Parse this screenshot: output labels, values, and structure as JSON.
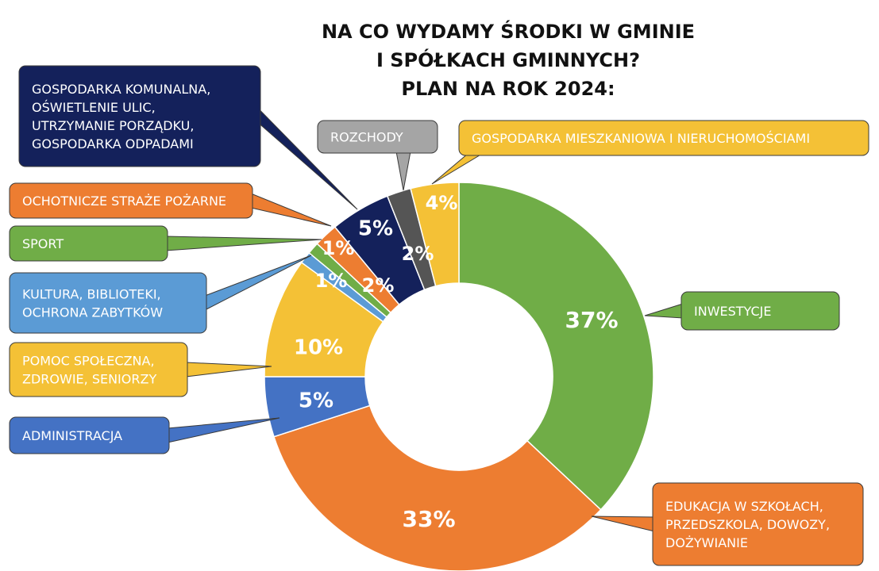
{
  "title_lines": [
    "NA CO WYDAMY ŚRODKI W GMINIE",
    "I SPÓŁKACH GMINNYCH?",
    "PLAN NA ROK 2024:"
  ],
  "chart_data": {
    "type": "pie",
    "variant": "doughnut",
    "title": "NA CO WYDAMY ŚRODKI W GMINIE I SPÓŁKACH GMINNYCH? PLAN NA ROK 2024:",
    "unit": "%",
    "start": "top, clockwise",
    "legend": "callout labels",
    "slices": [
      {
        "key": "inwestycje",
        "label_lines": [
          "INWESTYCJE"
        ],
        "value": 37,
        "value_label": "37%",
        "color": "#70AD47",
        "label_color": "#70AD47"
      },
      {
        "key": "edukacja",
        "label_lines": [
          "EDUKACJA W SZKOŁACH,",
          "PRZEDSZKOLA, DOWOZY,",
          "DOŻYWIANIE"
        ],
        "value": 33,
        "value_label": "33%",
        "color": "#ED7D31",
        "label_color": "#ED7D31"
      },
      {
        "key": "administracja",
        "label_lines": [
          "ADMINISTRACJA"
        ],
        "value": 5,
        "value_label": "5%",
        "color": "#4472C4",
        "label_color": "#4472C4"
      },
      {
        "key": "pomoc",
        "label_lines": [
          "POMOC SPOŁECZNA,",
          "ZDROWIE, SENIORZY"
        ],
        "value": 10,
        "value_label": "10%",
        "color": "#F4C136",
        "label_color": "#F4C136"
      },
      {
        "key": "kultura",
        "label_lines": [
          "KULTURA, BIBLIOTEKI,",
          "OCHRONA ZABYTKÓW"
        ],
        "value": 1,
        "value_label": "1%",
        "color": "#5B9BD5",
        "label_color": "#5B9BD5"
      },
      {
        "key": "sport",
        "label_lines": [
          "SPORT"
        ],
        "value": 1,
        "value_label": "1%",
        "color": "#70AD47",
        "label_color": "#70AD47"
      },
      {
        "key": "osp",
        "label_lines": [
          "OCHOTNICZE STRAŻE POŻARNE"
        ],
        "value": 2,
        "value_label": "2%",
        "color": "#ED7D31",
        "label_color": "#ED7D31"
      },
      {
        "key": "komunalna",
        "label_lines": [
          "GOSPODARKA KOMUNALNA,",
          "OŚWIETLENIE ULIC,",
          "UTRZYMANIE PORZĄDKU,",
          "GOSPODARKA ODPADAMI"
        ],
        "value": 5,
        "value_label": "5%",
        "color": "#14215B",
        "label_color": "#14215B"
      },
      {
        "key": "rozchody",
        "label_lines": [
          "ROZCHODY"
        ],
        "value": 2,
        "value_label": "2%",
        "color": "#555555",
        "label_color": "#A5A5A5"
      },
      {
        "key": "mieszkaniowa",
        "label_lines": [
          "GOSPODARKA MIESZKANIOWA I NIERUCHOMOŚCIAMI"
        ],
        "value": 4,
        "value_label": "4%",
        "color": "#F4C136",
        "label_color": "#F4C136"
      }
    ]
  }
}
